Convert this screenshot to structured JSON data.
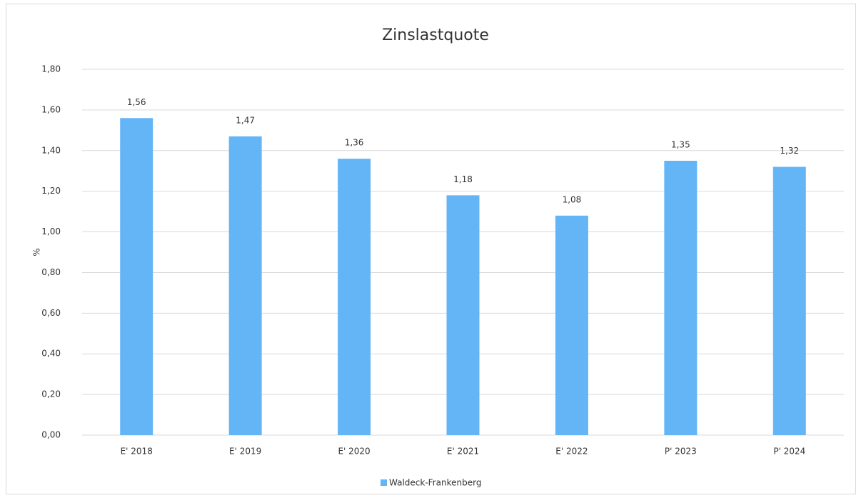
{
  "chart_data": {
    "type": "bar",
    "title": "Zinslastquote",
    "y_label": "%",
    "categories": [
      "E' 2018",
      "E' 2019",
      "E' 2020",
      "E' 2021",
      "E' 2022",
      "P' 2023",
      "P' 2024"
    ],
    "series": [
      {
        "name": "Waldeck-Frankenberg",
        "color": "#64b5f6",
        "values": [
          1.56,
          1.47,
          1.36,
          1.18,
          1.08,
          1.35,
          1.32
        ],
        "value_labels": [
          "1,56",
          "1,47",
          "1,36",
          "1,18",
          "1,08",
          "1,35",
          "1,32"
        ]
      }
    ],
    "ylim": [
      0,
      1.8
    ],
    "yticks": [
      {
        "value": 0,
        "label": "0,00"
      },
      {
        "value": 0.2,
        "label": "0,20"
      },
      {
        "value": 0.4,
        "label": "0,40"
      },
      {
        "value": 0.6,
        "label": "0,60"
      },
      {
        "value": 0.8,
        "label": "0,80"
      },
      {
        "value": 1,
        "label": "1,00"
      },
      {
        "value": 1.2,
        "label": "1,20"
      },
      {
        "value": 1.4,
        "label": "1,40"
      },
      {
        "value": 1.6,
        "label": "1,60"
      },
      {
        "value": 1.8,
        "label": "1,80"
      }
    ],
    "grid": true,
    "legend": "bottom"
  }
}
